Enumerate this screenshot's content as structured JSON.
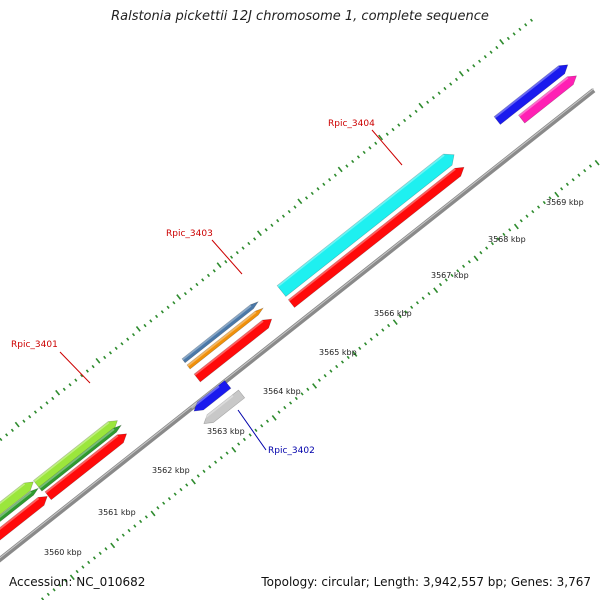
{
  "title": "Ralstonia pickettii 12J chromosome 1, complete sequence",
  "footer": {
    "accession": "Accession: NC_010682",
    "stats": "Topology: circular; Length: 3,942,557 bp; Genes: 3,767"
  },
  "ticks": [
    "3560 kbp",
    "3561 kbp",
    "3562 kbp",
    "3563 kbp",
    "3564 kbp",
    "3565 kbp",
    "3566 kbp",
    "3567 kbp",
    "3568 kbp",
    "3569 kbp"
  ],
  "gene_labels": [
    {
      "text": "Rpic_3401",
      "color": "#cc0000"
    },
    {
      "text": "Rpic_3402",
      "color": "#0000aa"
    },
    {
      "text": "Rpic_3403",
      "color": "#cc0000"
    },
    {
      "text": "Rpic_3404",
      "color": "#cc0000"
    }
  ],
  "colors": {
    "backbone": "#8a8a8a",
    "tick": "#2e8b2e",
    "red": "#ff0a0a",
    "cyan": "#1ef0f0",
    "lightgreen": "#9be63c",
    "darkgreen": "#2f9a2f",
    "blue": "#1a1aee",
    "magenta": "#ff20b4",
    "orange": "#f0900a",
    "steelblue": "#4a78a8",
    "grey": "#c8c8c8"
  }
}
